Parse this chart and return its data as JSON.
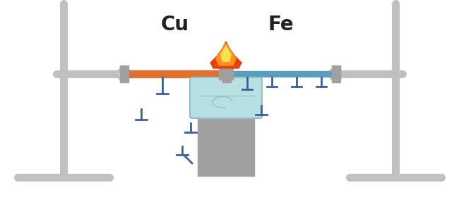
{
  "bg_color": "#ffffff",
  "stand_color": "#c0c0c0",
  "stand_lw": 8,
  "base_lw": 8,
  "clamp_ring_outer": 14,
  "clamp_ring_inner": 8,
  "cu_color": "#e07030",
  "fe_color": "#5b9fc0",
  "cu_label": "Cu",
  "fe_label": "Fe",
  "label_fontsize": 20,
  "label_color": "#222222",
  "wax_color": "#3a5fa0",
  "wax_lw": 2,
  "spirit_body_color": "#b8e0e0",
  "spirit_body_edge": "#90c0c0",
  "spirit_base_color": "#a0a0a0",
  "flame_outer_color": "#e84010",
  "flame_mid_color": "#f89020",
  "flame_inner_color": "#ffe050",
  "rod_support_color": "#c0c0c0",
  "clamp_block_color": "#a0a0a0"
}
